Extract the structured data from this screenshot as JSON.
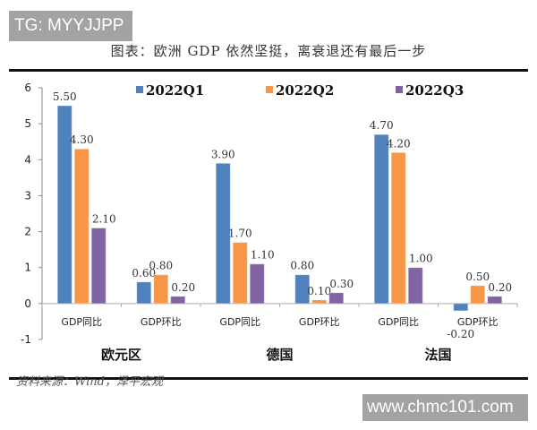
{
  "watermarks": {
    "top": "TG: MYYJJPP",
    "bottom": "www.chmc101.com"
  },
  "title": "图表：欧洲 GDP 依然坚挺，离衰退还有最后一步",
  "source": "资料来源：Wind，泽平宏观",
  "chart_data": {
    "type": "bar",
    "categories": [
      "GDP同比",
      "GDP环比",
      "GDP同比",
      "GDP环比",
      "GDP同比",
      "GDP环比"
    ],
    "groups": [
      "欧元区",
      "德国",
      "法国"
    ],
    "series": [
      {
        "name": "2022Q1",
        "color": "#4f81bd",
        "values": [
          5.5,
          0.6,
          3.9,
          0.8,
          4.7,
          -0.2
        ]
      },
      {
        "name": "2022Q2",
        "color": "#f79646",
        "values": [
          4.3,
          0.8,
          1.7,
          0.1,
          4.2,
          0.5
        ]
      },
      {
        "name": "2022Q3",
        "color": "#8064a2",
        "values": [
          2.1,
          0.2,
          1.1,
          0.3,
          1.0,
          0.2
        ]
      }
    ],
    "yticks": [
      "6",
      "5",
      "4",
      "3",
      "2",
      "1",
      "0",
      "-1"
    ],
    "ylim": [
      -1,
      6
    ],
    "grid": false,
    "legend": "top"
  }
}
